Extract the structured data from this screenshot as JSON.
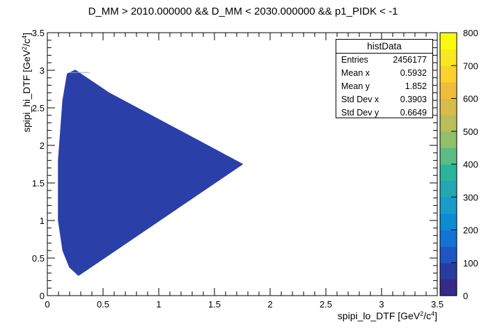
{
  "chart_data": {
    "type": "heatmap",
    "title": "D_MM > 2010.000000 && D_MM < 2030.000000 && p1_PIDK < -1",
    "xlabel": "spipi_lo_DTF [GeV²/c⁴]",
    "ylabel": "spipi_hi_DTF [GeV²/c⁴]",
    "xlim": [
      0,
      3.5
    ],
    "ylim": [
      0,
      3.5
    ],
    "x_ticks": [
      "0",
      "0.5",
      "1",
      "1.5",
      "2",
      "2.5",
      "3",
      "3.5"
    ],
    "y_ticks": [
      "0",
      "0.5",
      "1",
      "1.5",
      "2",
      "2.5",
      "3",
      "3.5"
    ],
    "region_outline": [
      [
        0.28,
        0.27
      ],
      [
        1.75,
        1.75
      ],
      [
        0.55,
        2.7
      ],
      [
        0.25,
        3.0
      ],
      [
        0.18,
        2.95
      ],
      [
        0.14,
        2.6
      ],
      [
        0.1,
        1.8
      ],
      [
        0.1,
        1.0
      ],
      [
        0.14,
        0.6
      ],
      [
        0.2,
        0.38
      ]
    ],
    "fill_color": "#2b3fa8",
    "colorbar": {
      "min": 0,
      "max": 800,
      "ticks": [
        "0",
        "100",
        "200",
        "300",
        "400",
        "500",
        "600",
        "700",
        "800"
      ],
      "colors": [
        "#352a87",
        "#2a3b9e",
        "#1f56c4",
        "#1373d4",
        "#0d8bd2",
        "#1b9bc7",
        "#22a7b3",
        "#2bb39b",
        "#5bbd84",
        "#8fc06c",
        "#b7bf59",
        "#d8bb48",
        "#f0bc3a",
        "#fbd12b",
        "#f9e81d",
        "#f9fb0e"
      ]
    },
    "stats_box": {
      "title": "histData",
      "rows": [
        {
          "label": "Entries",
          "value": "2456177"
        },
        {
          "label": "Mean x",
          "value": "0.5932"
        },
        {
          "label": "Mean y",
          "value": "1.852"
        },
        {
          "label": "Std Dev x",
          "value": "0.3903"
        },
        {
          "label": "Std Dev y",
          "value": "0.6649"
        }
      ]
    }
  }
}
